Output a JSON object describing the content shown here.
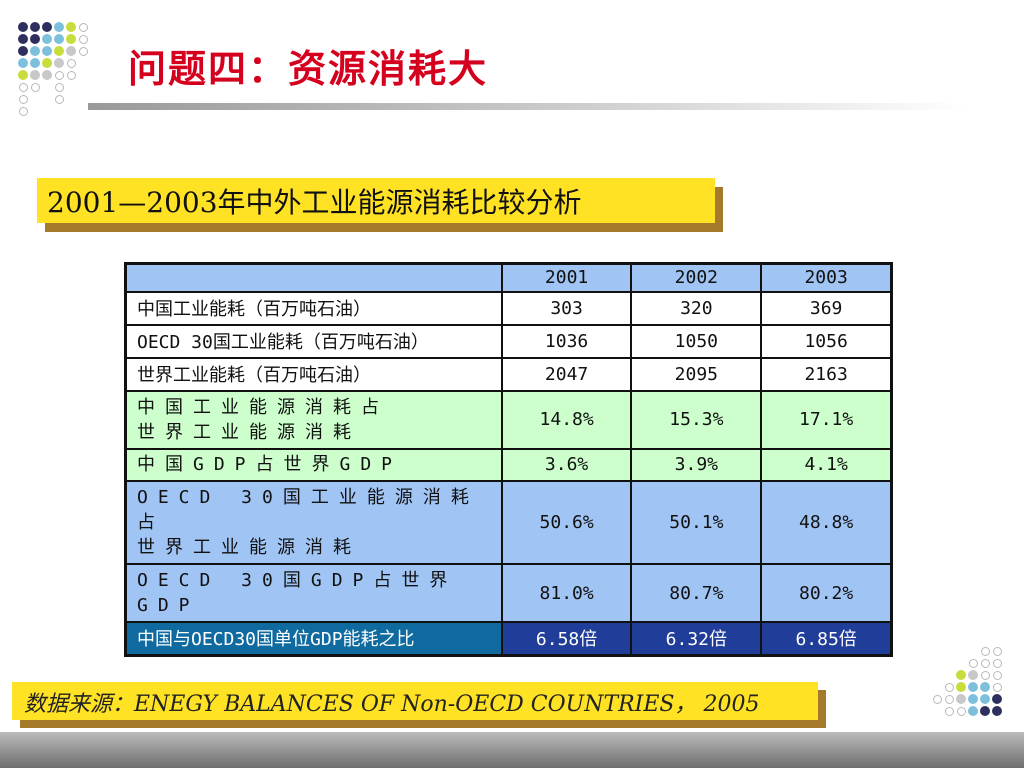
{
  "title": "问题四：资源消耗大",
  "subtitle": "2001—2003年中外工业能源消耗比较分析",
  "table": {
    "headers": [
      "",
      "2001",
      "2002",
      "2003"
    ],
    "rows": [
      {
        "label": "中国工业能耗（百万吨石油）",
        "values": [
          "303",
          "320",
          "369"
        ]
      },
      {
        "label": "OECD 30国工业能耗（百万吨石油）",
        "values": [
          "1036",
          "1050",
          "1056"
        ]
      },
      {
        "label": "世界工业能耗（百万吨石油）",
        "values": [
          "2047",
          "2095",
          "2163"
        ]
      },
      {
        "label_line1": "中国工业能源消耗占",
        "label_line2": "世界工业能源消耗",
        "values": [
          "14.8%",
          "15.3%",
          "17.1%"
        ]
      },
      {
        "label": "中国GDP占世界GDP",
        "values": [
          "3.6%",
          "3.9%",
          "4.1%"
        ]
      },
      {
        "label_line1": "OECD 30国工业能源消耗占",
        "label_line2": "世界工业能源消耗",
        "values": [
          "50.6%",
          "50.1%",
          "48.8%"
        ]
      },
      {
        "label": "OECD 30国GDP占世界GDP",
        "values": [
          "81.0%",
          "80.7%",
          "80.2%"
        ]
      },
      {
        "label": "中国与OECD30国单位GDP能耗之比",
        "values": [
          "6.58倍",
          "6.32倍",
          "6.85倍"
        ]
      }
    ]
  },
  "source": "数据来源：ENEGY BALANCES OF Non-OECD COUNTRIES， 2005",
  "colors": {
    "title": "#d4001e",
    "highlight_box": "#ffe224",
    "box_shadow": "#a57a2a",
    "row_blue": "#a0c4f4",
    "row_green": "#ccffcc",
    "row_navy": "#1f3d99",
    "dot_navy": "#2f2f5f",
    "dot_cyan": "#7ec0dc",
    "dot_lime": "#c8dc3c",
    "dot_gray": "#c8c8c8"
  }
}
